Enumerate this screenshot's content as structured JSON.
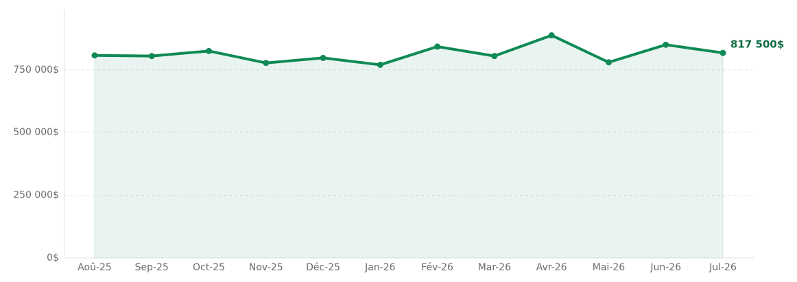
{
  "chart_data": {
    "type": "line",
    "categories": [
      "Aoû-25",
      "Sep-25",
      "Oct-25",
      "Nov-25",
      "Déc-25",
      "Jan-26",
      "Fév-26",
      "Mar-26",
      "Avr-26",
      "Mai-26",
      "Jun-26",
      "Jul-26"
    ],
    "values": [
      807500,
      805000,
      825000,
      777500,
      797500,
      770000,
      842500,
      805000,
      887500,
      780000,
      850000,
      817500
    ],
    "value_labels": [
      null,
      null,
      null,
      null,
      null,
      null,
      null,
      null,
      null,
      null,
      null,
      "817 500$"
    ],
    "color": "#0f8a55",
    "area": true,
    "ylim": [
      0,
      990000
    ],
    "yticks": [
      {
        "value": 0,
        "label": "0$"
      },
      {
        "value": 250000,
        "label": "250 000$"
      },
      {
        "value": 500000,
        "label": "500 000$"
      },
      {
        "value": 750000,
        "label": "750 000$"
      }
    ],
    "grid": true
  }
}
